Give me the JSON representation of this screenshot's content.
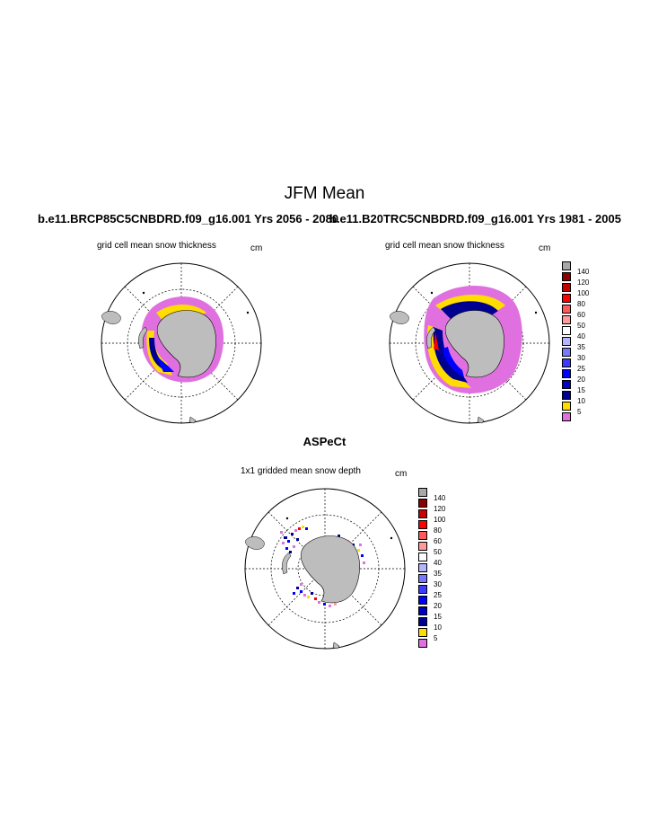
{
  "title": "JFM Mean",
  "subtitles": {
    "left": "b.e11.BRCP85C5CNBDRD.f09_g16.001  Yrs 2056 - 2080",
    "right": "b.e11.B20TRC5CNBDRD.f09_g16.001  Yrs 1981 - 2005"
  },
  "panels": {
    "left": {
      "label": "grid cell mean snow thickness",
      "unit": "cm"
    },
    "right": {
      "label": "grid cell mean snow thickness",
      "unit": "cm"
    },
    "bottom": {
      "title": "ASPeCt",
      "label": "1x1 gridded mean snow depth",
      "unit": "cm"
    }
  },
  "legend": {
    "labels": [
      "140",
      "120",
      "100",
      "80",
      "60",
      "50",
      "40",
      "35",
      "30",
      "25",
      "20",
      "15",
      "10",
      "5"
    ],
    "colors": [
      "#a8a8a8",
      "#8b0000",
      "#c80000",
      "#ff0000",
      "#ff5a5a",
      "#ff9b9b",
      "#ffffff",
      "#b4b4ff",
      "#7878ff",
      "#3c3cff",
      "#0000ff",
      "#0000c0",
      "#000090",
      "#ffdd00",
      "#e070e0"
    ]
  },
  "map_colors": {
    "ocean": "#ffffff",
    "land": "#bdbdbd",
    "thin_snow": "#e070e0",
    "yellow": "#ffdd00",
    "deep_blue": "#000090",
    "blue": "#0000ff"
  }
}
